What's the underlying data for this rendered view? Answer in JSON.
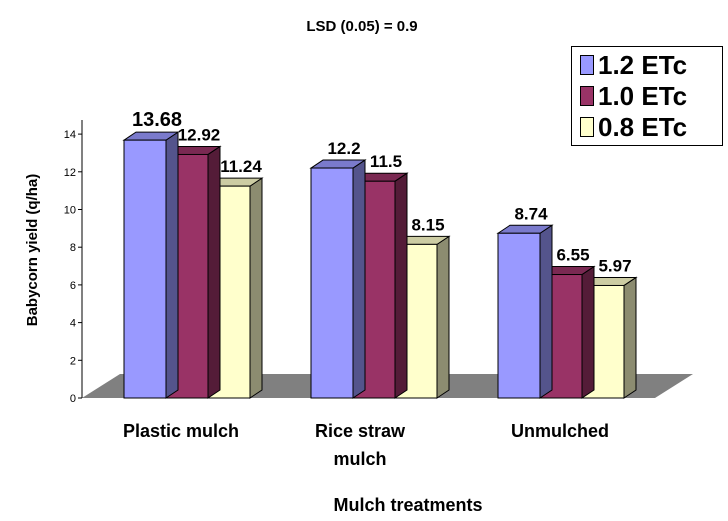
{
  "chart_data": {
    "type": "bar",
    "title": "LSD (0.05) = 0.9",
    "xlabel": "Mulch treatments",
    "ylabel": "Babycorn yield (q/ha)",
    "categories": [
      "Plastic mulch",
      "Rice straw mulch",
      "Unmulched"
    ],
    "category_lines": [
      [
        "Plastic mulch"
      ],
      [
        "Rice straw",
        "mulch"
      ],
      [
        "Unmulched"
      ]
    ],
    "yticks": [
      "0",
      "2",
      "4",
      "6",
      "8",
      "10",
      "12",
      "14"
    ],
    "ylim": [
      0,
      14
    ],
    "series": [
      {
        "name": "1.2 ETc",
        "color": "#9999ff",
        "values": [
          13.68,
          12.2,
          8.74
        ],
        "labels": [
          "13.68",
          "12.2",
          "8.74"
        ]
      },
      {
        "name": "1.0 ETc",
        "color": "#993366",
        "values": [
          12.92,
          11.5,
          6.55
        ],
        "labels": [
          "12.92",
          "11.5",
          "6.55"
        ]
      },
      {
        "name": "0.8 ETc",
        "color": "#ffffcc",
        "values": [
          11.24,
          8.15,
          5.97
        ],
        "labels": [
          "11.24",
          "8.15",
          "5.97"
        ]
      }
    ],
    "legend_position": "top-right",
    "gridlines": false,
    "floor_color": "#808080"
  }
}
